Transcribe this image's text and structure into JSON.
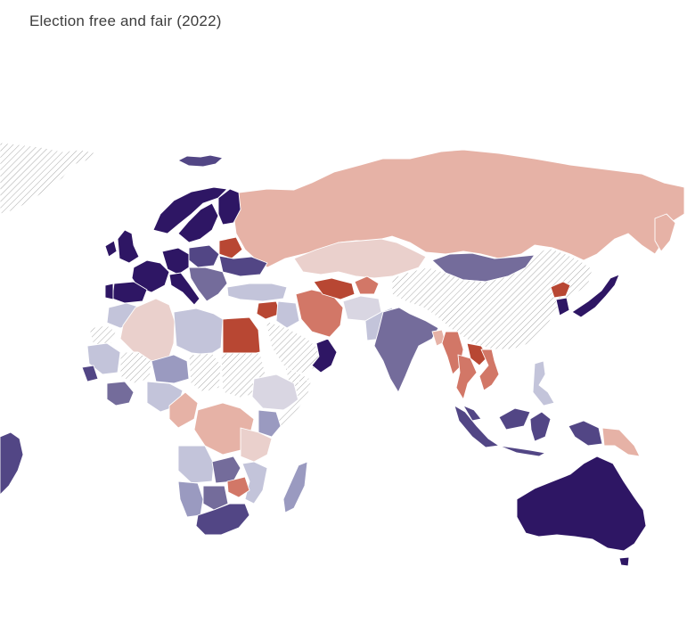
{
  "title": "Election free and fair (2022)",
  "colors": {
    "no_data": "url(#hatch)",
    "level_1": "#b84733",
    "level_2": "#d27767",
    "level_3": "#e6b2a6",
    "level_4": "#ead0cc",
    "level_5": "#d9d6e2",
    "level_6": "#c3c4da",
    "level_7": "#9a9ac0",
    "level_8": "#746c9b",
    "level_9": "#524685",
    "level_10": "#2e1664"
  },
  "regions": [
    {
      "name": "greenland",
      "level": "no_data"
    },
    {
      "name": "iceland",
      "level": "level_9"
    },
    {
      "name": "norway",
      "level": "level_10"
    },
    {
      "name": "sweden",
      "level": "level_10"
    },
    {
      "name": "finland",
      "level": "level_10"
    },
    {
      "name": "uk",
      "level": "level_10"
    },
    {
      "name": "ireland",
      "level": "level_10"
    },
    {
      "name": "france",
      "level": "level_10"
    },
    {
      "name": "spain",
      "level": "level_10"
    },
    {
      "name": "portugal",
      "level": "level_10"
    },
    {
      "name": "germany",
      "level": "level_10"
    },
    {
      "name": "poland",
      "level": "level_9"
    },
    {
      "name": "italy",
      "level": "level_10"
    },
    {
      "name": "belarus",
      "level": "level_1"
    },
    {
      "name": "ukraine",
      "level": "level_9"
    },
    {
      "name": "balkans",
      "level": "level_8"
    },
    {
      "name": "russia",
      "level": "level_3"
    },
    {
      "name": "kazakhstan",
      "level": "level_4"
    },
    {
      "name": "mongolia",
      "level": "level_8"
    },
    {
      "name": "china",
      "level": "no_data"
    },
    {
      "name": "north-korea",
      "level": "level_1"
    },
    {
      "name": "south-korea",
      "level": "level_10"
    },
    {
      "name": "japan",
      "level": "level_10"
    },
    {
      "name": "turkey",
      "level": "level_6"
    },
    {
      "name": "syria",
      "level": "level_1"
    },
    {
      "name": "iraq",
      "level": "level_6"
    },
    {
      "name": "iran",
      "level": "level_2"
    },
    {
      "name": "turkmenistan",
      "level": "level_1"
    },
    {
      "name": "uzbekistan",
      "level": "level_2"
    },
    {
      "name": "afghanistan",
      "level": "level_5"
    },
    {
      "name": "pakistan",
      "level": "level_6"
    },
    {
      "name": "saudi-arabia",
      "level": "no_data"
    },
    {
      "name": "yemen",
      "level": "no_data"
    },
    {
      "name": "oman",
      "level": "level_10"
    },
    {
      "name": "india",
      "level": "level_8"
    },
    {
      "name": "bangladesh",
      "level": "level_3"
    },
    {
      "name": "myanmar",
      "level": "level_2"
    },
    {
      "name": "thailand",
      "level": "level_2"
    },
    {
      "name": "laos",
      "level": "level_1"
    },
    {
      "name": "vietnam",
      "level": "level_2"
    },
    {
      "name": "malaysia",
      "level": "level_9"
    },
    {
      "name": "indonesia",
      "level": "level_9"
    },
    {
      "name": "philippines",
      "level": "level_6"
    },
    {
      "name": "papua-new-guinea",
      "level": "level_3"
    },
    {
      "name": "australia",
      "level": "level_10"
    },
    {
      "name": "morocco",
      "level": "level_6"
    },
    {
      "name": "algeria",
      "level": "level_4"
    },
    {
      "name": "libya",
      "level": "level_6"
    },
    {
      "name": "egypt",
      "level": "level_1"
    },
    {
      "name": "sudan",
      "level": "no_data"
    },
    {
      "name": "ethiopia",
      "level": "level_5"
    },
    {
      "name": "somalia",
      "level": "no_data"
    },
    {
      "name": "kenya",
      "level": "level_7"
    },
    {
      "name": "west-sahara",
      "level": "no_data"
    },
    {
      "name": "mauritania",
      "level": "level_6"
    },
    {
      "name": "mali",
      "level": "no_data"
    },
    {
      "name": "niger",
      "level": "level_7"
    },
    {
      "name": "chad",
      "level": "no_data"
    },
    {
      "name": "nigeria",
      "level": "level_6"
    },
    {
      "name": "senegal",
      "level": "level_9"
    },
    {
      "name": "ghana",
      "level": "level_8"
    },
    {
      "name": "cameroon",
      "level": "level_3"
    },
    {
      "name": "drc",
      "level": "level_3"
    },
    {
      "name": "angola",
      "level": "level_6"
    },
    {
      "name": "zambia",
      "level": "level_8"
    },
    {
      "name": "tanzania",
      "level": "level_4"
    },
    {
      "name": "mozambique",
      "level": "level_6"
    },
    {
      "name": "zimbabwe",
      "level": "level_2"
    },
    {
      "name": "namibia",
      "level": "level_7"
    },
    {
      "name": "botswana",
      "level": "level_8"
    },
    {
      "name": "south-africa",
      "level": "level_9"
    },
    {
      "name": "madagascar",
      "level": "level_7"
    },
    {
      "name": "brazil",
      "level": "level_9"
    },
    {
      "name": "alaska-canada-arctic",
      "level": "no_data"
    }
  ]
}
